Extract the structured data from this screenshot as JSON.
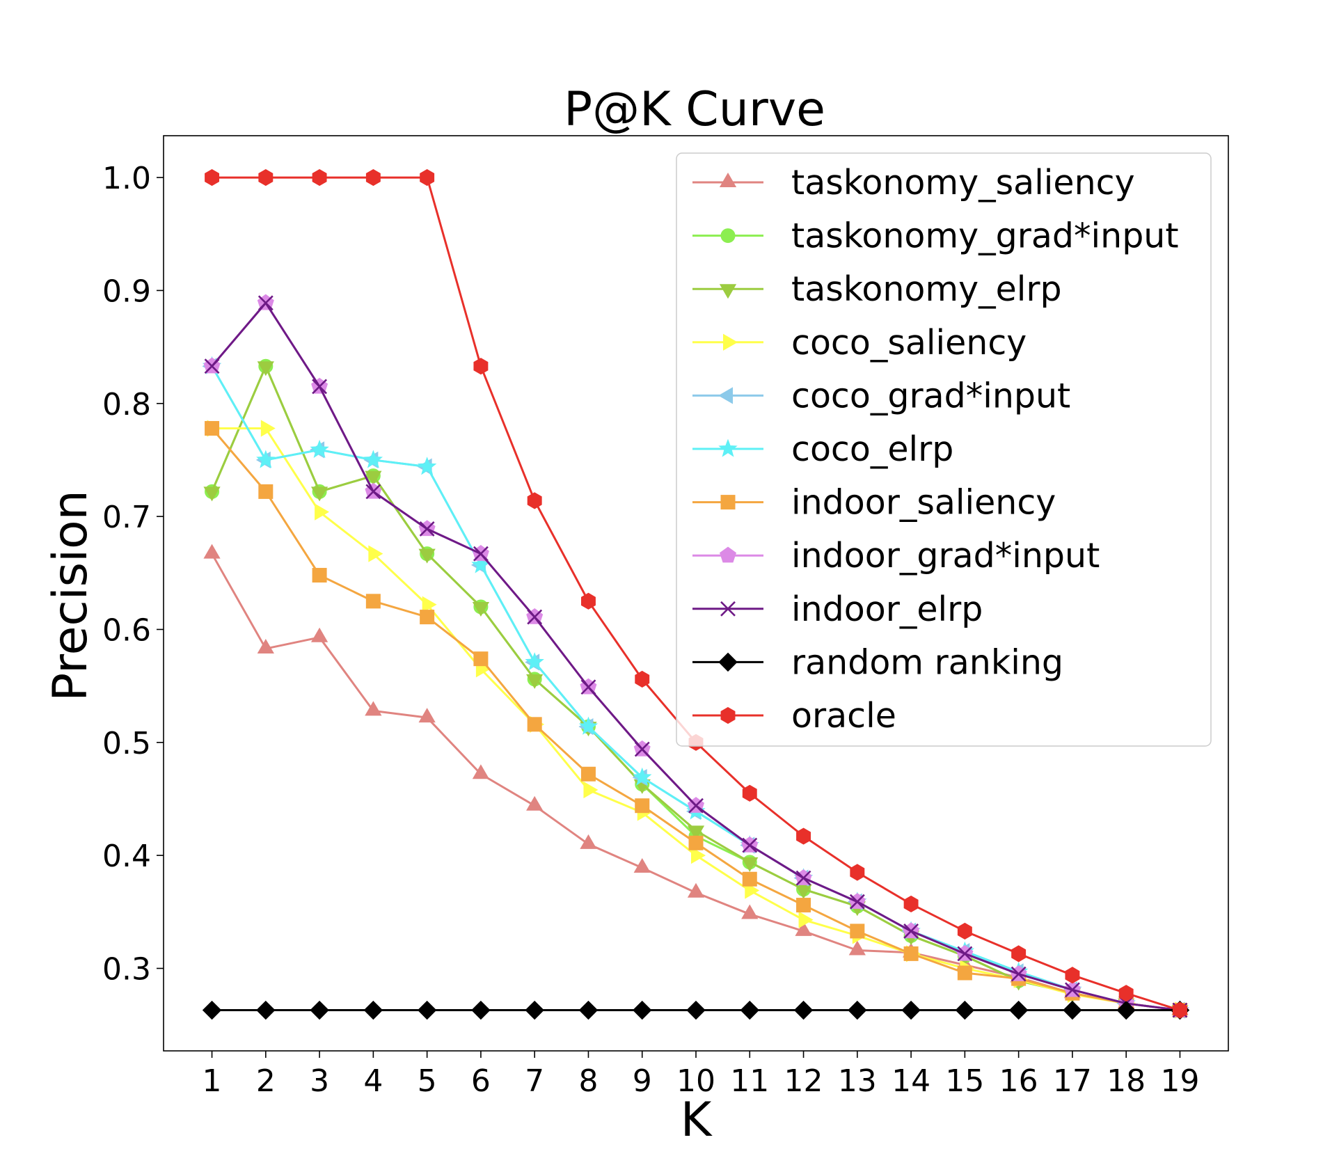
{
  "chart_data": {
    "type": "line",
    "title": "P@K Curve",
    "xlabel": "K",
    "ylabel": "Precision",
    "x": [
      1,
      2,
      3,
      4,
      5,
      6,
      7,
      8,
      9,
      10,
      11,
      12,
      13,
      14,
      15,
      16,
      17,
      18,
      19
    ],
    "xticks": [
      "1",
      "2",
      "3",
      "4",
      "5",
      "6",
      "7",
      "8",
      "9",
      "10",
      "11",
      "12",
      "13",
      "14",
      "15",
      "16",
      "17",
      "18",
      "19"
    ],
    "ylim": [
      0.227,
      1.037
    ],
    "yticks": [
      "0.3",
      "0.4",
      "0.5",
      "0.6",
      "0.7",
      "0.8",
      "0.9",
      "1.0"
    ],
    "legend_position": "top-right",
    "series": [
      {
        "name": "taskonomy_saliency",
        "color": "#e08480",
        "marker": "triangle-up",
        "values": [
          0.667,
          0.583,
          0.593,
          0.528,
          0.522,
          0.472,
          0.444,
          0.41,
          0.389,
          0.367,
          0.348,
          0.333,
          0.316,
          0.314,
          0.303,
          0.292,
          0.278,
          0.269,
          0.263
        ]
      },
      {
        "name": "taskonomy_grad*input",
        "color": "#8cee50",
        "marker": "circle",
        "values": [
          0.722,
          0.833,
          0.722,
          0.736,
          0.667,
          0.62,
          0.556,
          0.514,
          0.463,
          0.417,
          0.394,
          0.37,
          0.355,
          0.329,
          0.311,
          0.289,
          0.278,
          0.269,
          0.263
        ]
      },
      {
        "name": "taskonomy_elrp",
        "color": "#9ccc40",
        "marker": "triangle-down",
        "values": [
          0.722,
          0.833,
          0.722,
          0.736,
          0.667,
          0.62,
          0.556,
          0.514,
          0.463,
          0.422,
          0.394,
          0.37,
          0.355,
          0.329,
          0.311,
          0.289,
          0.278,
          0.269,
          0.263
        ]
      },
      {
        "name": "coco_saliency",
        "color": "#ffff4a",
        "marker": "triangle-right",
        "values": [
          0.778,
          0.778,
          0.704,
          0.667,
          0.622,
          0.565,
          0.516,
          0.458,
          0.438,
          0.4,
          0.369,
          0.343,
          0.329,
          0.313,
          0.3,
          0.29,
          0.277,
          0.269,
          0.263
        ]
      },
      {
        "name": "coco_grad*input",
        "color": "#8ccaea",
        "marker": "triangle-left",
        "values": [
          0.833,
          0.75,
          0.759,
          0.75,
          0.744,
          0.657,
          0.571,
          0.514,
          0.469,
          0.439,
          0.409,
          0.38,
          0.359,
          0.333,
          0.315,
          0.297,
          0.281,
          0.269,
          0.263
        ]
      },
      {
        "name": "coco_elrp",
        "color": "#5ef0f6",
        "marker": "star",
        "values": [
          0.833,
          0.75,
          0.759,
          0.75,
          0.744,
          0.657,
          0.571,
          0.514,
          0.469,
          0.439,
          0.409,
          0.38,
          0.359,
          0.333,
          0.315,
          0.297,
          0.281,
          0.269,
          0.263
        ]
      },
      {
        "name": "indoor_saliency",
        "color": "#f4a640",
        "marker": "square",
        "values": [
          0.778,
          0.722,
          0.648,
          0.625,
          0.611,
          0.574,
          0.516,
          0.472,
          0.444,
          0.411,
          0.379,
          0.356,
          0.333,
          0.313,
          0.296,
          0.291,
          0.278,
          0.269,
          0.263
        ]
      },
      {
        "name": "indoor_grad*input",
        "color": "#dc8ae6",
        "marker": "pentagon",
        "values": [
          0.833,
          0.889,
          0.815,
          0.722,
          0.689,
          0.667,
          0.611,
          0.549,
          0.494,
          0.444,
          0.409,
          0.38,
          0.359,
          0.333,
          0.313,
          0.295,
          0.281,
          0.269,
          0.263
        ]
      },
      {
        "name": "indoor_elrp",
        "color": "#6e1a86",
        "marker": "x",
        "values": [
          0.833,
          0.889,
          0.815,
          0.722,
          0.689,
          0.667,
          0.611,
          0.549,
          0.494,
          0.444,
          0.409,
          0.38,
          0.359,
          0.333,
          0.313,
          0.295,
          0.281,
          0.269,
          0.263
        ]
      },
      {
        "name": "random ranking",
        "color": "#000000",
        "marker": "diamond",
        "values": [
          0.263,
          0.263,
          0.263,
          0.263,
          0.263,
          0.263,
          0.263,
          0.263,
          0.263,
          0.263,
          0.263,
          0.263,
          0.263,
          0.263,
          0.263,
          0.263,
          0.263,
          0.263,
          0.263
        ]
      },
      {
        "name": "oracle",
        "color": "#e8302a",
        "marker": "hexagon",
        "values": [
          1.0,
          1.0,
          1.0,
          1.0,
          1.0,
          0.833,
          0.714,
          0.625,
          0.556,
          0.5,
          0.455,
          0.417,
          0.385,
          0.357,
          0.333,
          0.313,
          0.294,
          0.278,
          0.263
        ]
      }
    ]
  }
}
